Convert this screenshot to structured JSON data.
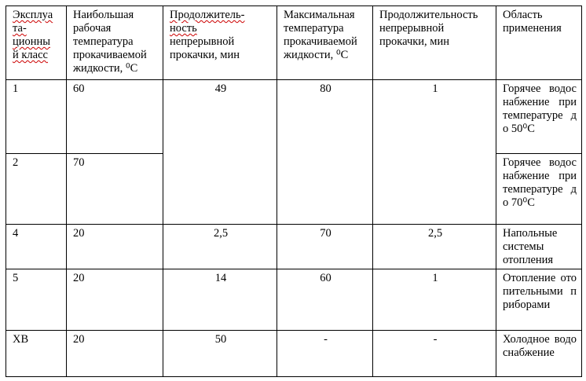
{
  "header": [
    "Эксплуатационный класс",
    "Наибольшая рабочая температура прокачиваемой жидкости, ⁰С",
    "Продолжитель-ность непрерывной прокачки, мин",
    "Максимальная температура прокачиваемой жидкости, ⁰С",
    "Продолжительность непрерывной прокачки, мин",
    "Область применения"
  ],
  "header_col1_parts": [
    "Эксплуа",
    "та-",
    "ционны",
    "й класс"
  ],
  "header_col3_parts": [
    "Продолжитель-",
    "ность",
    "непрерывной прокачки, мин"
  ],
  "rows": [
    {
      "cls": "1",
      "work_temp": "60",
      "duration": "49",
      "max_temp": "80",
      "max_duration": "1",
      "application": "Горячее водоснабжение при температуре до 50⁰С"
    },
    {
      "cls": "2",
      "work_temp": "70",
      "application": "Горячее водоснабжение при температуре до 70⁰С"
    },
    {
      "cls": "4",
      "work_temp": "20",
      "duration": "2,5",
      "max_temp": "70",
      "max_duration": "2,5",
      "application": "Напольные системы отопления"
    },
    {
      "cls": "5",
      "work_temp": "20",
      "duration": "14",
      "max_temp": "60",
      "max_duration": "1",
      "application": "Отопление отопительными приборами"
    },
    {
      "cls": "ХВ",
      "work_temp": "20",
      "duration": "50",
      "max_temp": "-",
      "max_duration": "-",
      "application": "Холодное водоснабжение"
    }
  ]
}
